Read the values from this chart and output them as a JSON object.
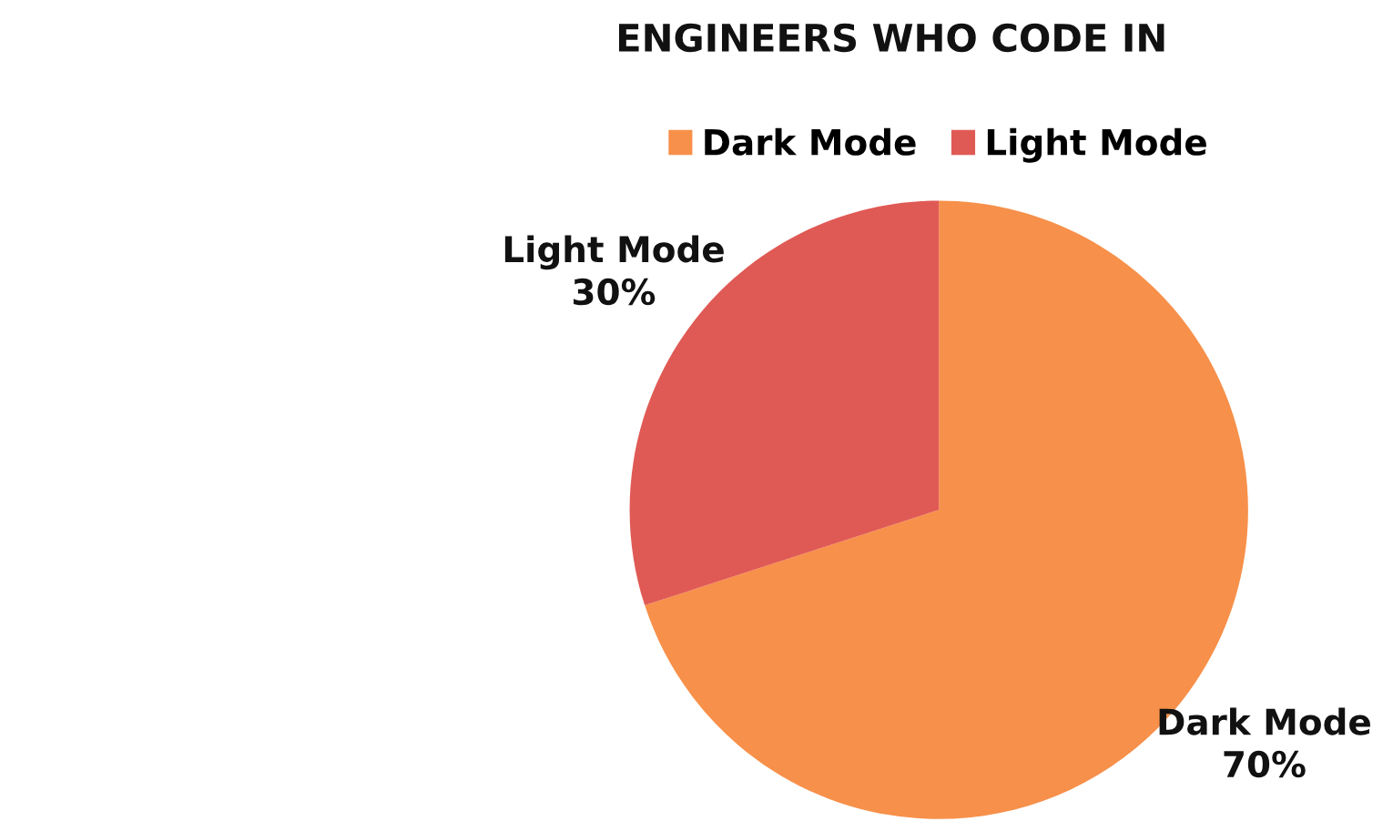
{
  "chart_data": {
    "type": "pie",
    "title": "ENGINEERS WHO CODE IN",
    "categories": [
      "Dark Mode",
      "Light Mode"
    ],
    "values": [
      70,
      30
    ],
    "value_labels": [
      "70%",
      "30%"
    ],
    "colors": [
      "#f7904a",
      "#e05a55"
    ],
    "legend": "top"
  }
}
